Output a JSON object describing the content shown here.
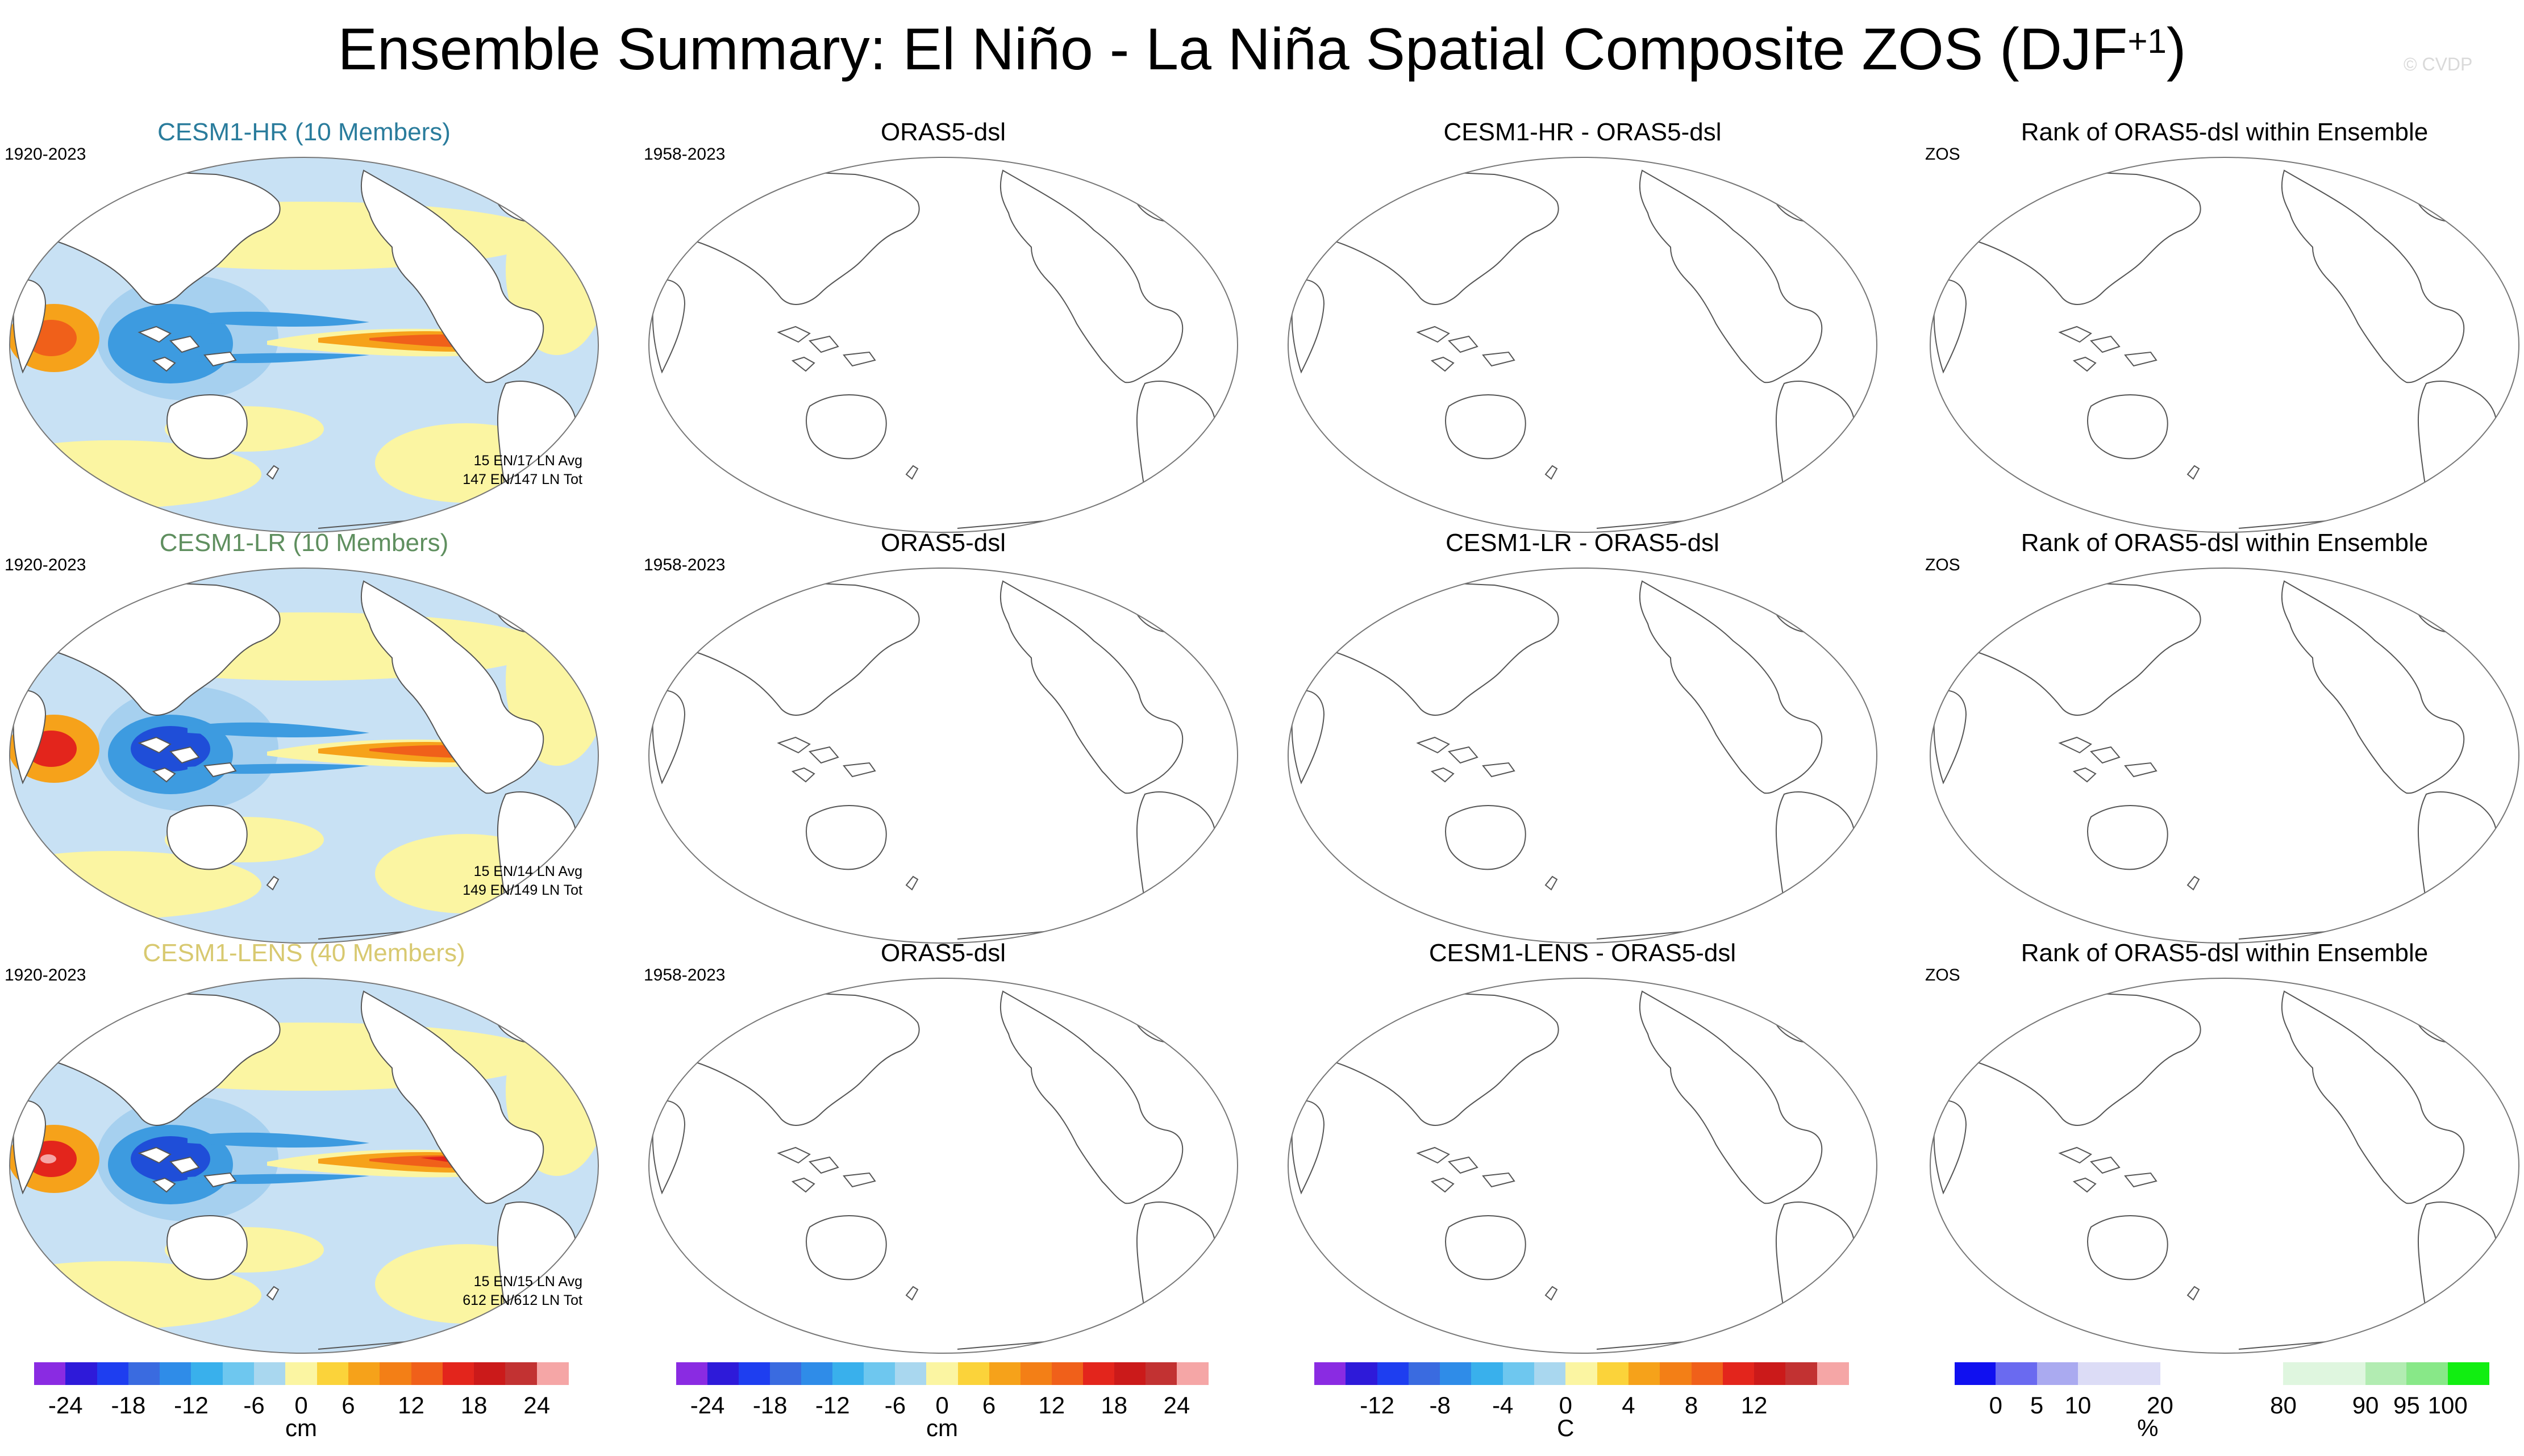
{
  "header": {
    "title": "Ensemble Summary: El Niño - La Niña Spatial Composite ZOS (DJF",
    "title_sup": "+1",
    "title_close": ")",
    "credit": "© CVDP"
  },
  "colors": {
    "land": "#ffffff",
    "coast": "#555555",
    "ocean_pale_blue": "#c8e1f4",
    "ocean_light_blue": "#a6d0ef",
    "ocean_yellow": "#fbf5a2",
    "mid_blue": "#3d9be0",
    "strong_blue": "#1f4ed8",
    "orange": "#f6a21a",
    "deep_orange": "#f0601a",
    "red": "#e3251c"
  },
  "rows": [
    {
      "model": {
        "title": "CESM1-HR (10 Members)",
        "title_color": "#2a7c9c",
        "period": "1920-2023",
        "counts_1": "15 EN/17 LN Avg",
        "counts_2": "147 EN/147 LN Tot"
      },
      "obs": {
        "title": "ORAS5-dsl",
        "period": "1958-2023"
      },
      "diff": {
        "title": "CESM1-HR - ORAS5-dsl"
      },
      "rank": {
        "title": "Rank of ORAS5-dsl within Ensemble",
        "period": "ZOS"
      }
    },
    {
      "model": {
        "title": "CESM1-LR (10 Members)",
        "title_color": "#5f8f5f",
        "period": "1920-2023",
        "counts_1": "15 EN/14 LN Avg",
        "counts_2": "149 EN/149 LN Tot"
      },
      "obs": {
        "title": "ORAS5-dsl",
        "period": "1958-2023"
      },
      "diff": {
        "title": "CESM1-LR - ORAS5-dsl"
      },
      "rank": {
        "title": "Rank of ORAS5-dsl within Ensemble",
        "period": "ZOS"
      }
    },
    {
      "model": {
        "title": "CESM1-LENS (40 Members)",
        "title_color": "#d8c970",
        "period": "1920-2023",
        "counts_1": "15 EN/15 LN Avg",
        "counts_2": "612 EN/612 LN Tot"
      },
      "obs": {
        "title": "ORAS5-dsl",
        "period": "1958-2023"
      },
      "diff": {
        "title": "CESM1-LENS - ORAS5-dsl"
      },
      "rank": {
        "title": "Rank of ORAS5-dsl within Ensemble",
        "period": "ZOS"
      }
    }
  ],
  "colorbars": [
    {
      "unit": "cm",
      "colors": [
        "#8a2be2",
        "#2e1ad9",
        "#1e3ef0",
        "#3a6be0",
        "#2f8ce8",
        "#39b0ec",
        "#6ec7ef",
        "#a9d7ef",
        "#fbf5a2",
        "#fbd33a",
        "#f6a21a",
        "#f37f16",
        "#f0601a",
        "#e3251c",
        "#cb1a1a",
        "#c23232",
        "#f5a6a6"
      ],
      "ticks": [
        "-24",
        "-18",
        "-12",
        "-6",
        "0",
        "6",
        "12",
        "18",
        "24"
      ],
      "tick_index": [
        1,
        3,
        5,
        7,
        8.5,
        10,
        12,
        14,
        16
      ]
    },
    {
      "unit": "cm",
      "colors": [
        "#8a2be2",
        "#2e1ad9",
        "#1e3ef0",
        "#3a6be0",
        "#2f8ce8",
        "#39b0ec",
        "#6ec7ef",
        "#a9d7ef",
        "#fbf5a2",
        "#fbd33a",
        "#f6a21a",
        "#f37f16",
        "#f0601a",
        "#e3251c",
        "#cb1a1a",
        "#c23232",
        "#f5a6a6"
      ],
      "ticks": [
        "-24",
        "-18",
        "-12",
        "-6",
        "0",
        "6",
        "12",
        "18",
        "24"
      ],
      "tick_index": [
        1,
        3,
        5,
        7,
        8.5,
        10,
        12,
        14,
        16
      ]
    },
    {
      "unit": "C",
      "colors": [
        "#8a2be2",
        "#2e1ad9",
        "#1e3ef0",
        "#3a6be0",
        "#2f8ce8",
        "#39b0ec",
        "#6ec7ef",
        "#a9d7ef",
        "#fbf5a2",
        "#fbd33a",
        "#f6a21a",
        "#f37f16",
        "#f0601a",
        "#e3251c",
        "#cb1a1a",
        "#c23232",
        "#f5a6a6"
      ],
      "ticks": [
        "-12",
        "-8",
        "-4",
        "0",
        "4",
        "8",
        "12"
      ],
      "tick_index": [
        2,
        4,
        6,
        8,
        10,
        12,
        14
      ]
    },
    {
      "unit": "%",
      "colors": [
        "#1010f0",
        "#6a6af0",
        "#aaaaf0",
        "#dcdcf6",
        "#dcdcf6",
        "#ffffff",
        "#ffffff",
        "#ffffff",
        "#dff6df",
        "#dff6df",
        "#b2ecb2",
        "#88e888",
        "#11ee11"
      ],
      "ticks": [
        "0",
        "5",
        "10",
        "20",
        "80",
        "90",
        "95",
        "100"
      ],
      "tick_index": [
        1,
        2,
        3,
        5,
        8,
        10,
        11,
        12
      ]
    }
  ]
}
